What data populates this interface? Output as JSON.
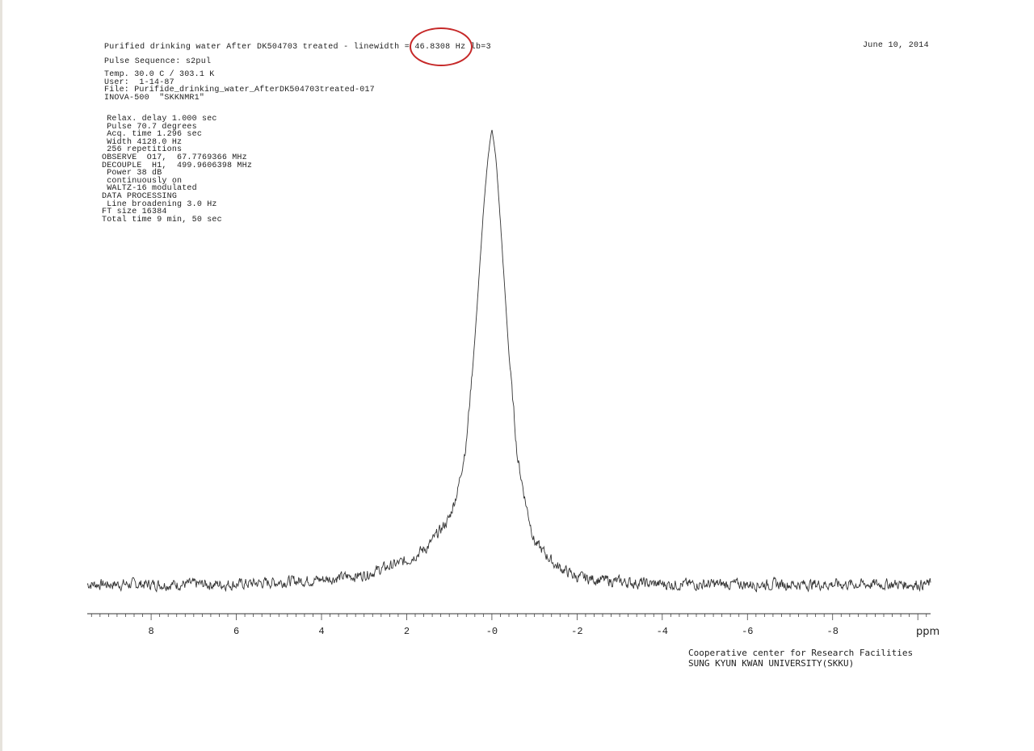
{
  "header": {
    "title_prefix": "Purified drinking water After DK504703 treated - linewidth = ",
    "linewidth_value": "46.8308 Hz",
    "title_suffix": " lb=3",
    "date": "June 10, 2014",
    "pulse_sequence": "Pulse Sequence: s2pul"
  },
  "info_lines": [
    "Temp. 30.0 C / 303.1 K",
    "User:  1-14-87",
    "File: Purifide_drinking_water_AfterDK504703treated-017",
    "INOVA-500  \"SKKNMR1\""
  ],
  "acq_lines": [
    " Relax. delay 1.000 sec",
    " Pulse 70.7 degrees",
    " Acq. time 1.296 sec",
    " Width 4128.0 Hz",
    " 256 repetitions",
    "OBSERVE  O17,  67.7769366 MHz",
    "DECOUPLE  H1,  499.9606398 MHz",
    " Power 38 dB",
    " continuously on",
    " WALTZ-16 modulated",
    "DATA PROCESSING",
    " Line broadening 3.0 Hz",
    "FT size 16384",
    "Total time 9 min, 50 sec"
  ],
  "annotation": {
    "circle_color": "#c62828"
  },
  "footer": {
    "line1": "Cooperative center for Research Facilities",
    "line2": "SUNG KYUN KWAN UNIVERSITY(SKKU)"
  },
  "chart_data": {
    "type": "line",
    "xlabel": "ppm",
    "xlim": [
      9.5,
      -10.3
    ],
    "x_reversed": true,
    "ylim": [
      0,
      1
    ],
    "grid": false,
    "x_ticks": [
      8,
      6,
      4,
      2,
      0,
      -2,
      -4,
      -6,
      -8
    ],
    "x_tick_labels": [
      "8",
      "6",
      "4",
      "2",
      "-0",
      "-2",
      "-4",
      "-6",
      "-8"
    ],
    "series": [
      {
        "x": [
          9.5,
          8.0,
          6.0,
          4.0,
          3.0,
          2.0,
          1.5,
          1.0,
          0.8,
          0.6,
          0.4,
          0.2,
          0.1,
          0.0,
          -0.1,
          -0.2,
          -0.4,
          -0.6,
          -0.8,
          -1.0,
          -1.5,
          -2.0,
          -3.0,
          -4.0,
          -6.0,
          -8.0,
          -10.3
        ],
        "y": [
          0.03,
          0.03,
          0.03,
          0.04,
          0.05,
          0.08,
          0.11,
          0.17,
          0.23,
          0.33,
          0.55,
          0.82,
          0.93,
          1.0,
          0.93,
          0.8,
          0.52,
          0.3,
          0.2,
          0.12,
          0.07,
          0.045,
          0.035,
          0.03,
          0.03,
          0.03,
          0.03
        ],
        "color": "#333333"
      }
    ],
    "noise_amplitude": 0.018
  }
}
